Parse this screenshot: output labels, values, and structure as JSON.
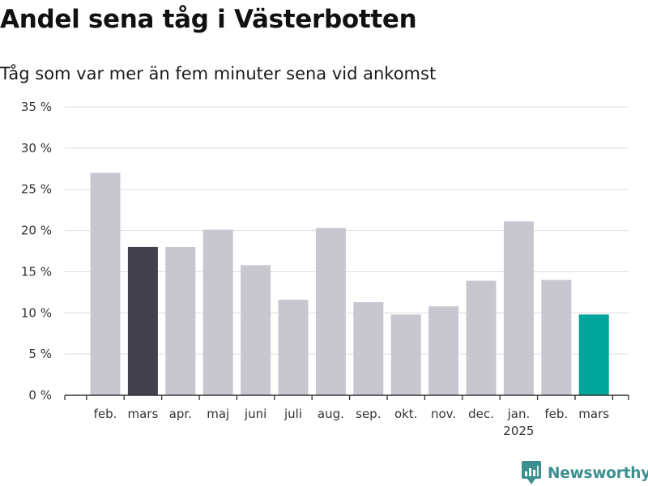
{
  "title": "Andel sena tåg i Västerbotten",
  "subtitle": "Tåg som var mer än fem minuter sena vid ankomst",
  "brand": {
    "name": "Newsworthy",
    "icon": "newsworthy-logo-icon"
  },
  "colors": {
    "bar": "#c8c7d0",
    "highlight_prev": "#43414d",
    "highlight_current": "#00a69a",
    "grid": "#dddddd",
    "brand": "#3d8f8f"
  },
  "chart_data": {
    "type": "bar",
    "categories": [
      "feb.",
      "mars",
      "apr.",
      "maj",
      "juni",
      "juli",
      "aug.",
      "sep.",
      "okt.",
      "nov.",
      "dec.",
      "jan.",
      "feb.",
      "mars"
    ],
    "category_sublabels": [
      "",
      "",
      "",
      "",
      "",
      "",
      "",
      "",
      "",
      "",
      "",
      "2025",
      "",
      ""
    ],
    "values": [
      27.0,
      18.0,
      18.0,
      20.1,
      15.8,
      11.6,
      20.3,
      11.3,
      9.8,
      10.8,
      13.9,
      21.1,
      14.0,
      9.8
    ],
    "highlight": [
      null,
      "prev",
      null,
      null,
      null,
      null,
      null,
      null,
      null,
      null,
      null,
      null,
      null,
      "current"
    ],
    "ylim": [
      0,
      35
    ],
    "yticks": [
      0,
      5,
      10,
      15,
      20,
      25,
      30,
      35
    ],
    "ytick_labels": [
      "0 %",
      "5 %",
      "10 %",
      "15 %",
      "20 %",
      "25 %",
      "30 %",
      "35 %"
    ],
    "grid": true,
    "legend": "none"
  }
}
